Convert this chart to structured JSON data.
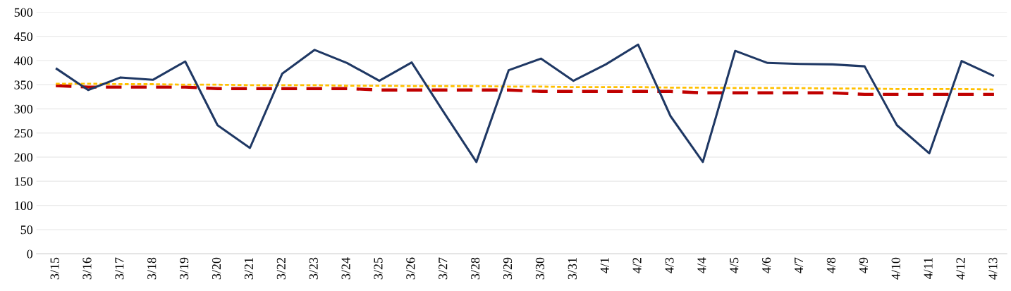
{
  "chart_data": {
    "type": "line",
    "categories": [
      "3/15",
      "3/16",
      "3/17",
      "3/18",
      "3/19",
      "3/20",
      "3/21",
      "3/22",
      "3/23",
      "3/24",
      "3/25",
      "3/26",
      "3/27",
      "3/28",
      "3/29",
      "3/30",
      "3/31",
      "4/1",
      "4/2",
      "4/3",
      "4/4",
      "4/5",
      "4/6",
      "4/7",
      "4/8",
      "4/9",
      "4/10",
      "4/11",
      "4/12",
      "4/13"
    ],
    "series": [
      {
        "color": "#1f3864",
        "line_style": "solid",
        "values": [
          384,
          339,
          365,
          360,
          398,
          266,
          219,
          373,
          422,
          395,
          358,
          396,
          292,
          190,
          380,
          404,
          358,
          392,
          433,
          285,
          190,
          420,
          395,
          393,
          392,
          388,
          266,
          208,
          399,
          368
        ]
      },
      {
        "color": "#ffc000",
        "line_style": "dotted",
        "values": [
          352,
          352,
          351,
          351,
          350,
          350,
          349,
          349,
          349,
          348,
          348,
          347,
          347,
          347,
          346,
          346,
          345,
          345,
          345,
          344,
          344,
          343,
          343,
          343,
          342,
          342,
          341,
          341,
          341,
          340
        ]
      },
      {
        "color": "#c00000",
        "line_style": "dashed",
        "values": [
          348,
          345,
          345,
          345,
          345,
          342,
          342,
          342,
          342,
          342,
          339,
          339,
          339,
          339,
          339,
          336,
          336,
          336,
          336,
          336,
          333,
          333,
          333,
          333,
          333,
          330,
          330,
          330,
          330,
          330
        ]
      }
    ],
    "ylim": [
      0,
      500
    ],
    "yticks": [
      0,
      50,
      100,
      150,
      200,
      250,
      300,
      350,
      400,
      450,
      500
    ],
    "grid": "y",
    "legend": false
  }
}
